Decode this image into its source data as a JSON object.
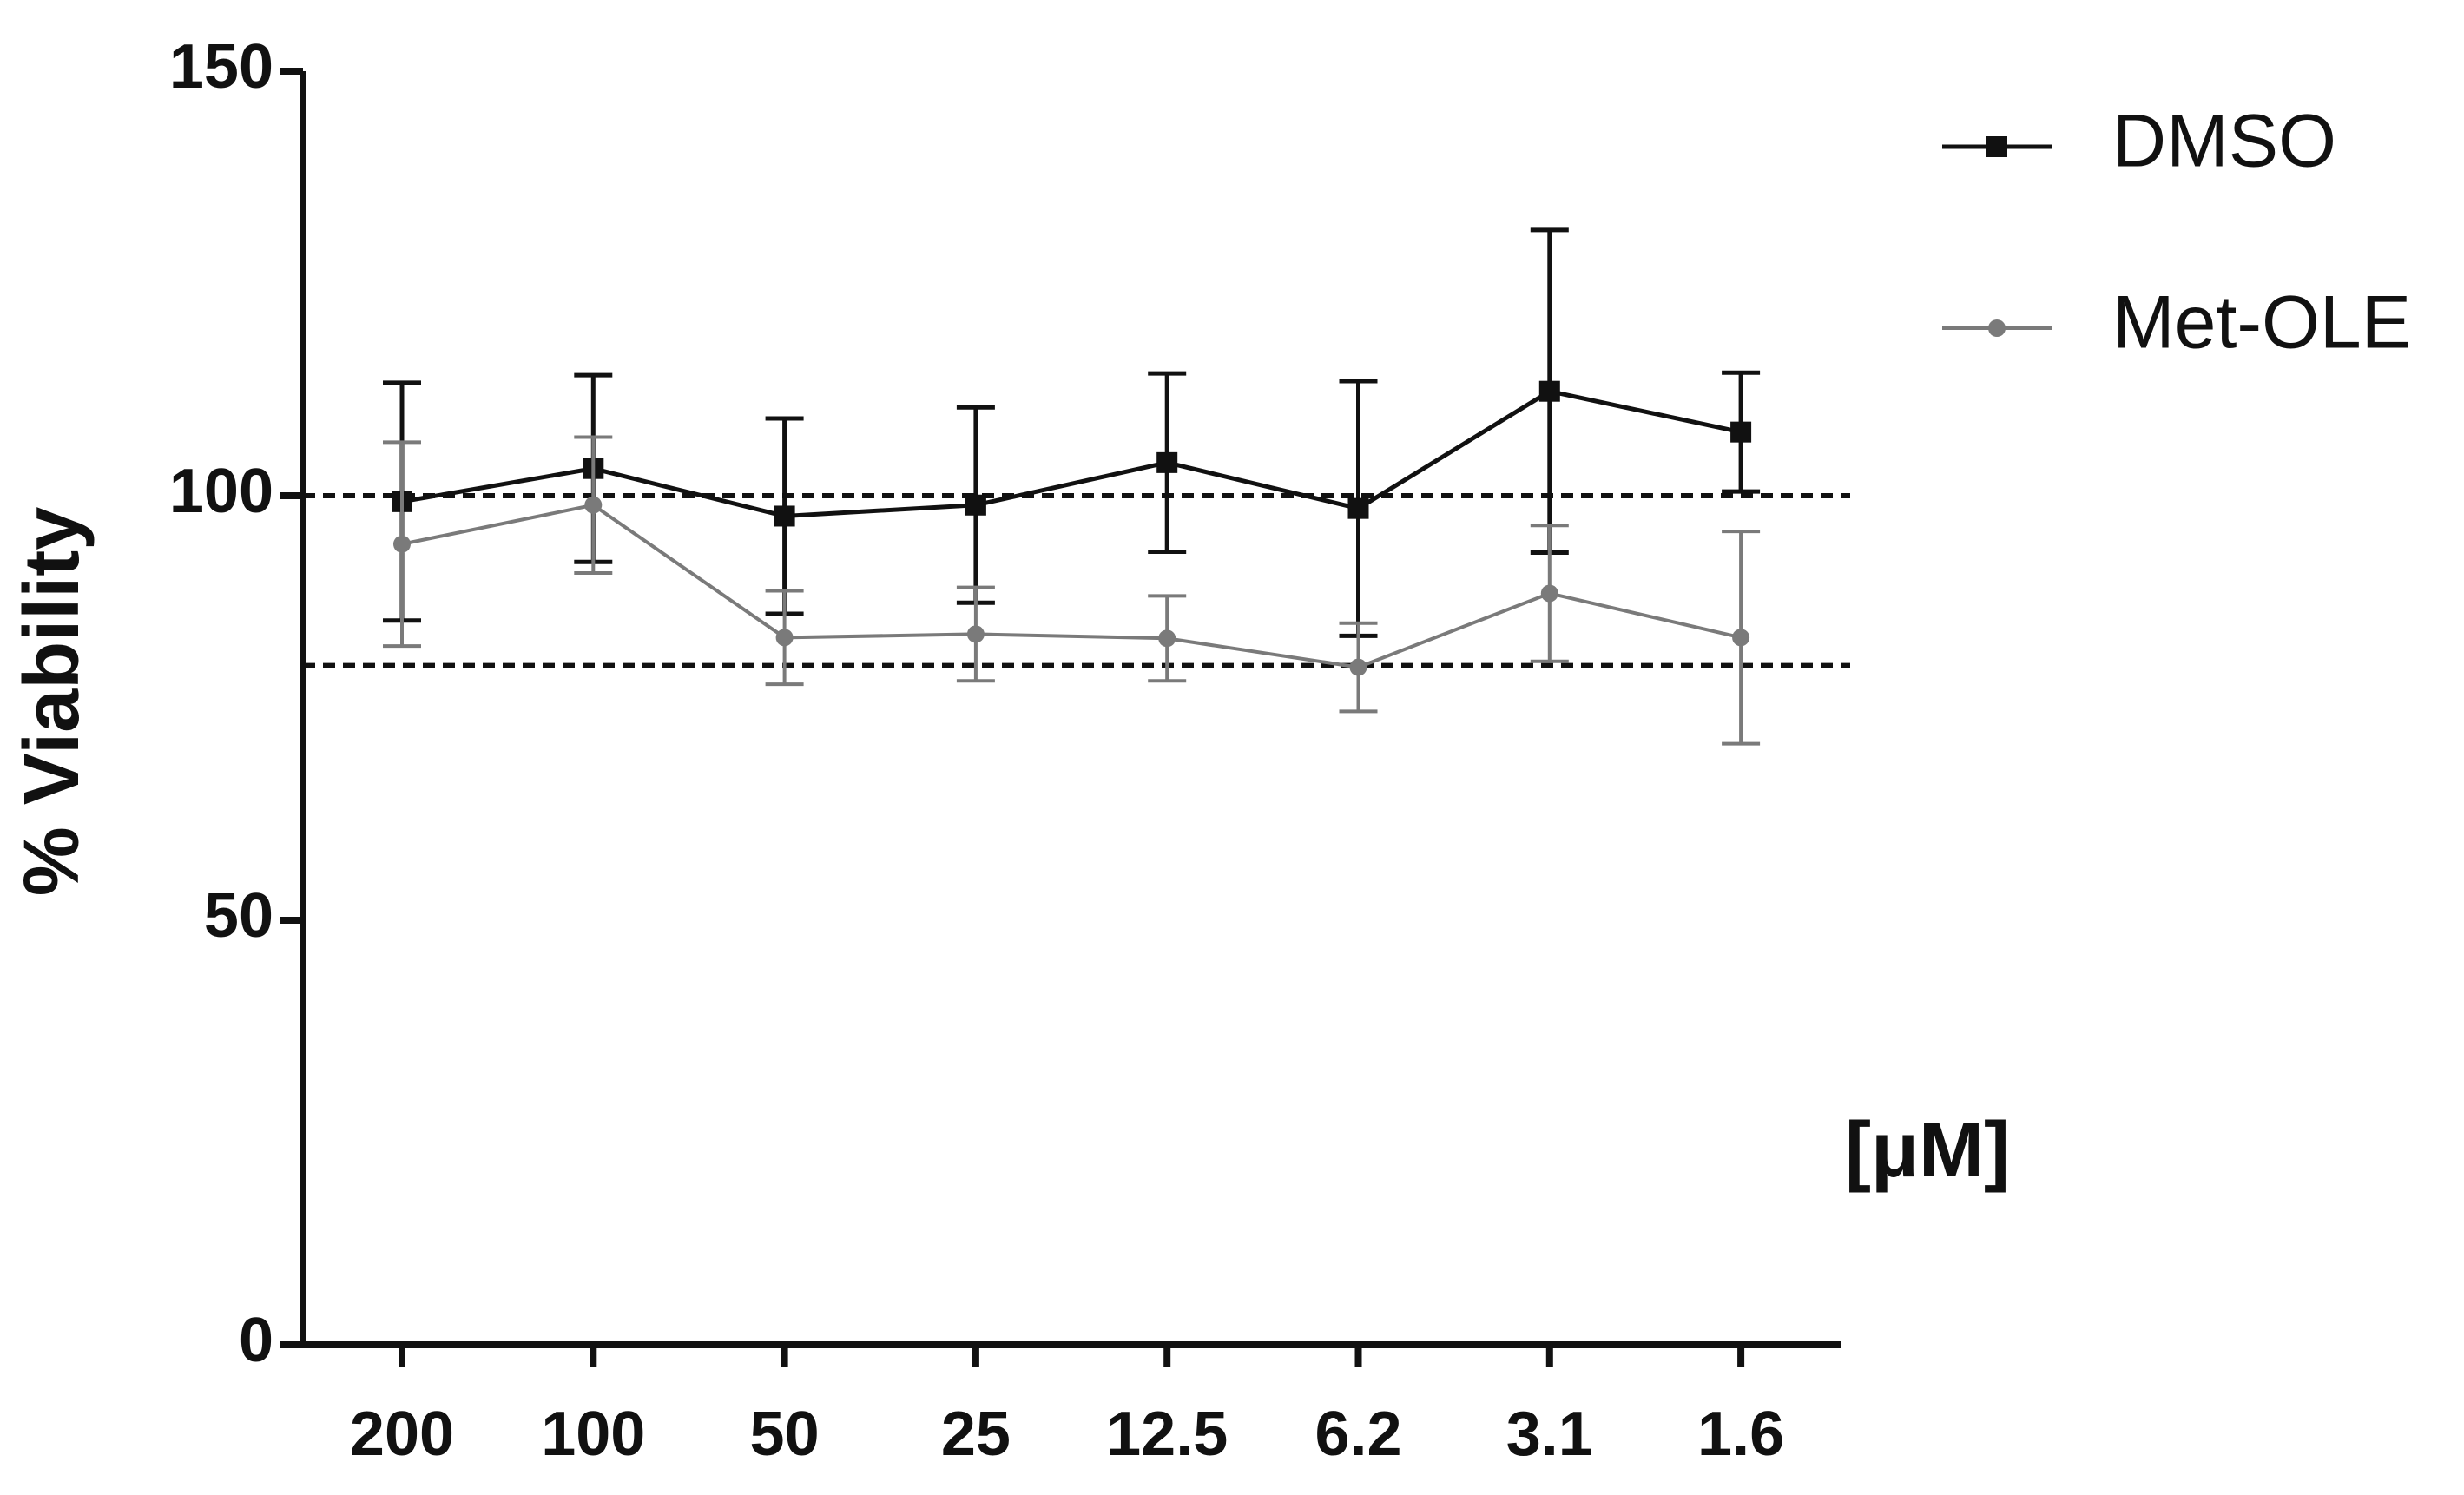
{
  "chart_data": {
    "type": "line",
    "ylabel": "% Viability",
    "xlabel": "[μM]",
    "categories": [
      "200",
      "100",
      "50",
      "25",
      "12.5",
      "6.2",
      "3.1",
      "1.6"
    ],
    "series": [
      {
        "name": "DMSO",
        "color": "#111111",
        "marker": "square",
        "values": [
          99.3,
          103.2,
          97.6,
          98.9,
          103.9,
          98.5,
          112.3,
          107.5
        ],
        "error": [
          14,
          11,
          11.5,
          11.5,
          10.5,
          15,
          19,
          7
        ]
      },
      {
        "name": "Met-OLE",
        "color": "#7a7a7a",
        "marker": "circle",
        "values": [
          94.3,
          98.9,
          83.3,
          83.7,
          83.2,
          79.8,
          88.5,
          83.3
        ],
        "error": [
          12,
          8,
          5.5,
          5.5,
          5,
          5.2,
          8,
          12.5
        ]
      }
    ],
    "reference_lines": [
      100,
      80
    ],
    "ylim": [
      0,
      150
    ],
    "yticks": [
      0,
      50,
      100,
      150
    ]
  }
}
